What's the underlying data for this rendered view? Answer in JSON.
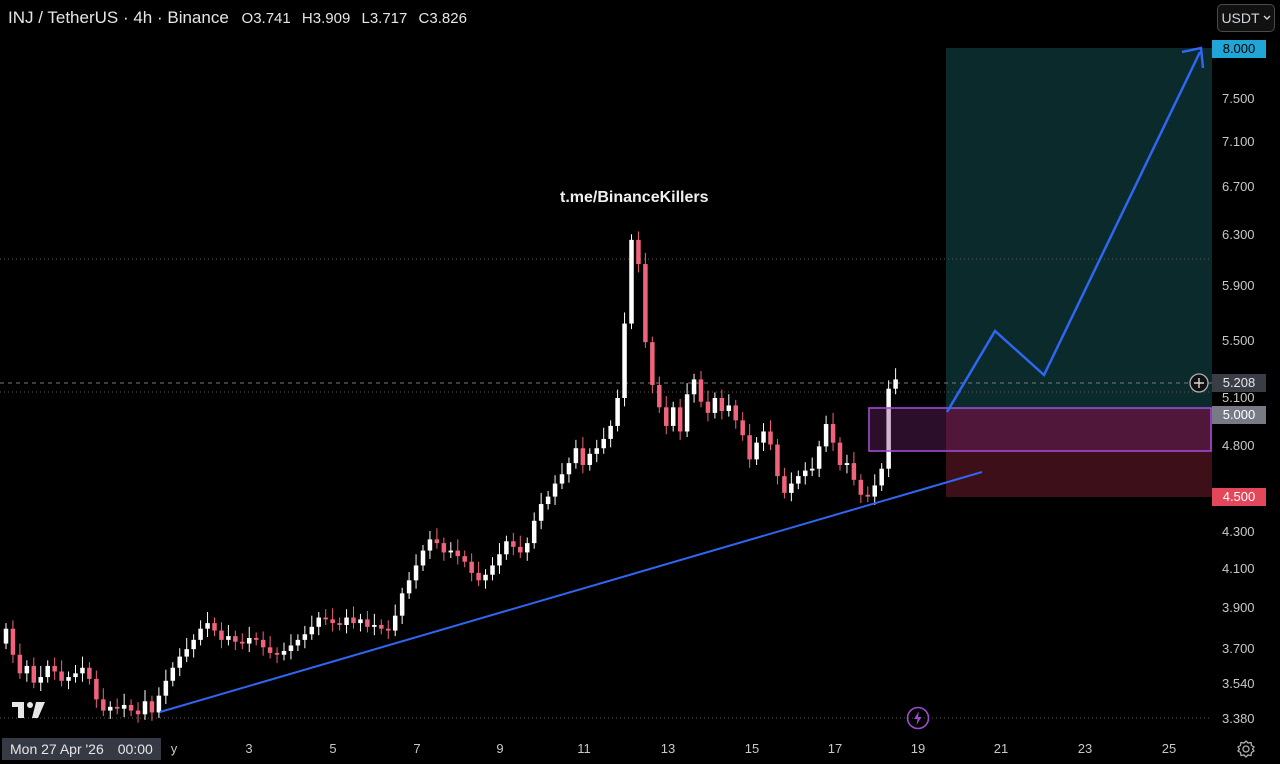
{
  "header": {
    "symbol": "INJ / TetherUS · 4h · Binance",
    "open_key": "O",
    "open": "3.741",
    "high_key": "H",
    "high": "3.909",
    "low_key": "L",
    "low": "3.717",
    "close_key": "C",
    "close": "3.826"
  },
  "currency_button": {
    "label": "USDT",
    "icon": "chevron-down-icon"
  },
  "watermark": "t.me/BinanceKillers",
  "crosshair_time": {
    "date": "Mon 27 Apr '26",
    "time": "00:00"
  },
  "price_axis": {
    "ticks": [
      "7.500",
      "7.100",
      "6.700",
      "6.300",
      "5.900",
      "5.500",
      "5.100",
      "4.800",
      "4.300",
      "4.100",
      "3.900",
      "3.700",
      "3.540",
      "3.380"
    ]
  },
  "price_labels": {
    "target": "8.000",
    "current": "5.208",
    "entry": "5.000",
    "stop": "4.500"
  },
  "date_axis": {
    "partial": "y",
    "ticks": [
      "3",
      "5",
      "7",
      "9",
      "11",
      "13",
      "15",
      "17",
      "19",
      "21",
      "23",
      "25"
    ]
  },
  "colors": {
    "up": "#ffffff",
    "down": "#f0637a",
    "trendline": "#2f66f2",
    "profit_zone": "#0a2a2c",
    "loss_zone": "#3c0f19",
    "order_block": "#a04bd1",
    "target_bg": "#1fa6d6",
    "stop_bg": "#e24859",
    "current_bg": "#3a3d45",
    "entry_bg": "#787b86"
  },
  "icons": {
    "logo": "tradingview-logo-icon",
    "settings": "settings-gear-icon",
    "alert": "lightning-bolt-icon",
    "add": "plus-circle-icon"
  }
}
